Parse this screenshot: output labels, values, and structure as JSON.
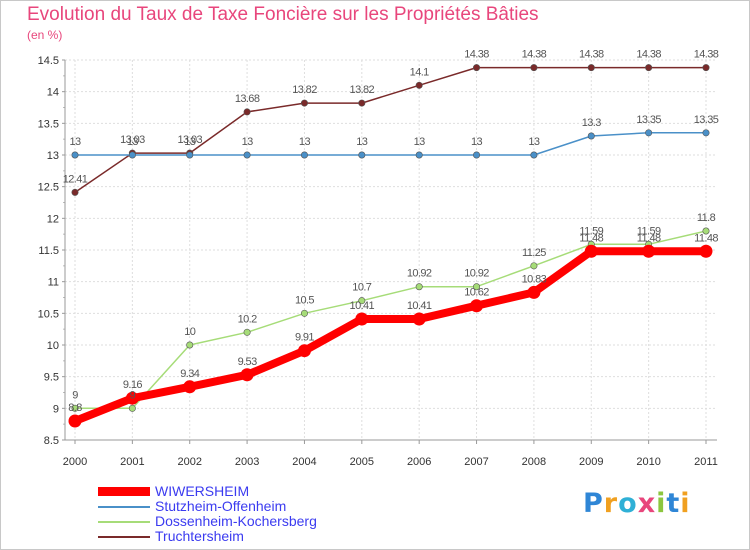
{
  "title": "Evolution du Taux de Taxe Foncière sur les Propriétés Bâties",
  "ylabel": "(en %)",
  "logo": {
    "letters": [
      {
        "ch": "P",
        "color": "#2f86d6"
      },
      {
        "ch": "r",
        "color": "#f0a020"
      },
      {
        "ch": "o",
        "color": "#2fb0d6"
      },
      {
        "ch": "x",
        "color": "#e8467c"
      },
      {
        "ch": "i",
        "color": "#8cc63f"
      },
      {
        "ch": "t",
        "color": "#2f86d6"
      },
      {
        "ch": "i",
        "color": "#f0a020"
      }
    ]
  },
  "chart_data": {
    "type": "line",
    "x": [
      "2000",
      "2001",
      "2002",
      "2003",
      "2004",
      "2005",
      "2006",
      "2007",
      "2008",
      "2009",
      "2010",
      "2011"
    ],
    "ylim": [
      8.5,
      14.5
    ],
    "yticks": [
      "8.5",
      "9",
      "9.5",
      "10",
      "10.5",
      "11",
      "11.5",
      "12",
      "12.5",
      "13",
      "13.5",
      "14",
      "14.5"
    ],
    "grid": true,
    "legend_position": "bottom-left",
    "series": [
      {
        "name": "WIWERSHEIM",
        "color": "#ff0000",
        "thick": true,
        "values": [
          8.8,
          9.16,
          9.34,
          9.53,
          9.91,
          10.41,
          10.41,
          10.62,
          10.83,
          11.48,
          11.48,
          11.48
        ],
        "labels": [
          "8.8",
          "9.16",
          "9.34",
          "9.53",
          "9.91",
          "10.41",
          "10.41",
          "10.62",
          "10.83",
          "11.48",
          "11.48",
          "11.48"
        ]
      },
      {
        "name": "Stutzheim-Offenheim",
        "color": "#4a90c8",
        "thick": false,
        "values": [
          13,
          13,
          13,
          13,
          13,
          13,
          13,
          13,
          13,
          13.3,
          13.35,
          13.35
        ],
        "labels": [
          "13",
          "13",
          "13",
          "13",
          "13",
          "13",
          "13",
          "13",
          "13",
          "13.3",
          "13.35",
          "13.35"
        ]
      },
      {
        "name": "Dossenheim-Kochersberg",
        "color": "#a6dc78",
        "thick": false,
        "values": [
          9,
          9,
          10,
          10.2,
          10.5,
          10.7,
          10.92,
          10.92,
          11.25,
          11.59,
          11.59,
          11.8
        ],
        "labels": [
          "9",
          "9",
          "10",
          "10.2",
          "10.5",
          "10.7",
          "10.92",
          "10.92",
          "11.25",
          "11.59",
          "11.59",
          "11.8"
        ]
      },
      {
        "name": "Truchtersheim",
        "color": "#7a2a2a",
        "thick": false,
        "values": [
          12.41,
          13.03,
          13.03,
          13.68,
          13.82,
          13.82,
          14.1,
          14.38,
          14.38,
          14.38,
          14.38,
          14.38
        ],
        "labels": [
          "12.41",
          "13.03",
          "13.03",
          "13.68",
          "13.82",
          "13.82",
          "14.1",
          "14.38",
          "14.38",
          "14.38",
          "14.38",
          "14.38"
        ]
      }
    ]
  }
}
